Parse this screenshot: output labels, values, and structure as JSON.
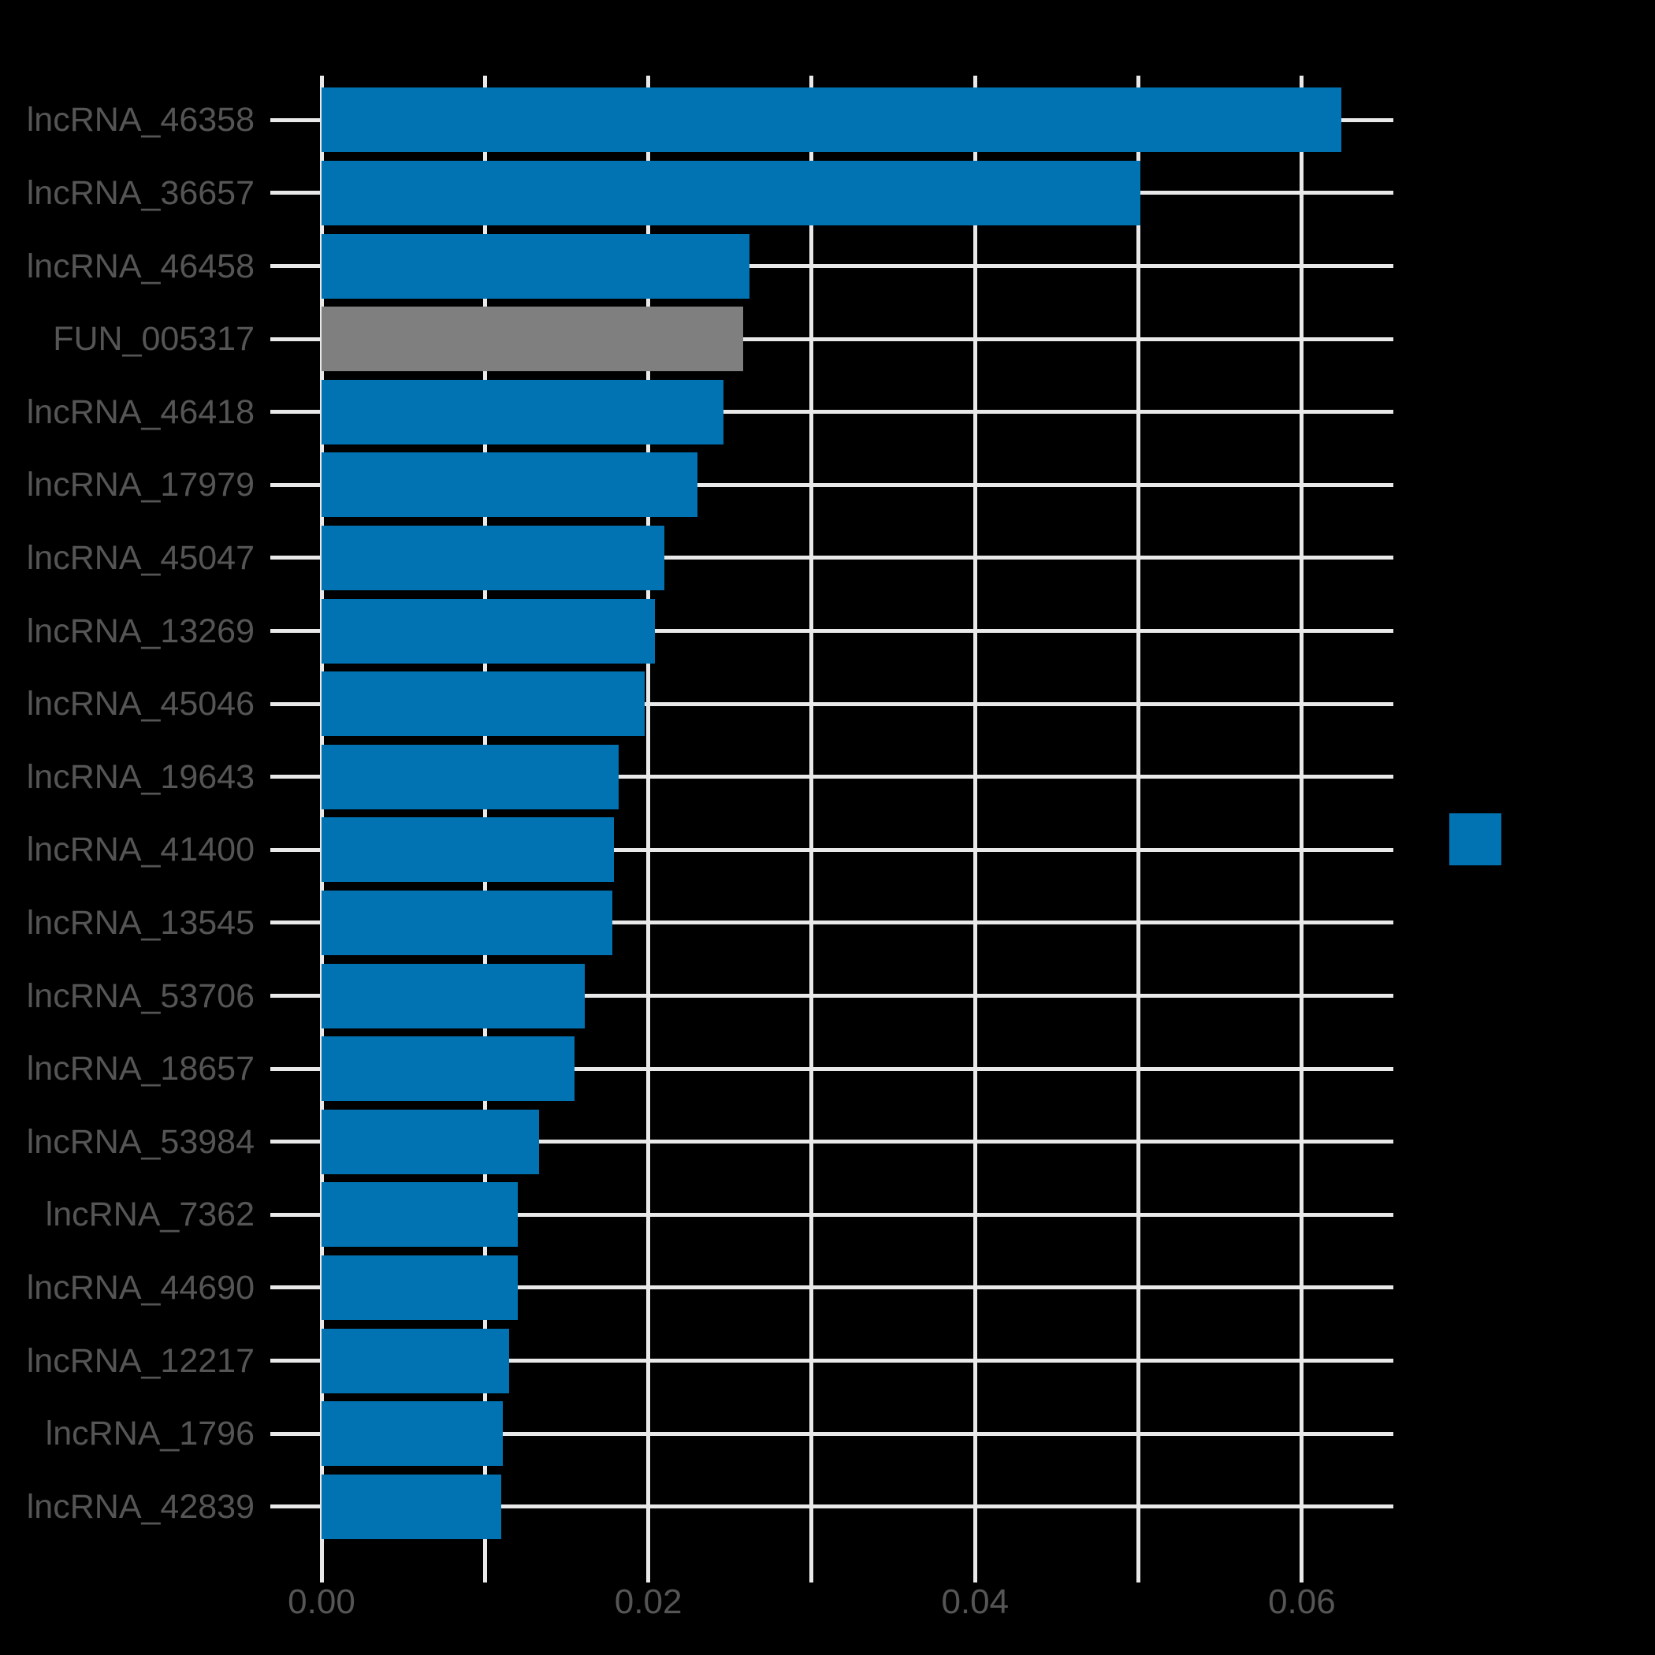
{
  "colors": {
    "background": "#000000",
    "bar_default": "#0173b2",
    "bar_highlight": "#7f7f7f",
    "grid": "#e9e9e9",
    "tick": "#e9e9e9",
    "text": "#555555"
  },
  "legend": {
    "visible": true,
    "swatch_color": "#0173b2",
    "label": ""
  },
  "chart_data": {
    "type": "bar",
    "orientation": "horizontal",
    "title": "",
    "xlabel": "",
    "ylabel": "",
    "categories": [
      "lncRNA_46358",
      "lncRNA_36657",
      "lncRNA_46458",
      "FUN_005317",
      "lncRNA_46418",
      "lncRNA_17979",
      "lncRNA_45047",
      "lncRNA_13269",
      "lncRNA_45046",
      "lncRNA_19643",
      "lncRNA_41400",
      "lncRNA_13545",
      "lncRNA_53706",
      "lncRNA_18657",
      "lncRNA_53984",
      "lncRNA_7362",
      "lncRNA_44690",
      "lncRNA_12217",
      "lncRNA_1796",
      "lncRNA_42839"
    ],
    "values": [
      0.0624,
      0.0501,
      0.0262,
      0.0258,
      0.0246,
      0.023,
      0.021,
      0.0204,
      0.0198,
      0.0182,
      0.0179,
      0.0178,
      0.0161,
      0.0155,
      0.0133,
      0.012,
      0.012,
      0.0115,
      0.0111,
      0.011
    ],
    "highlight_category": "FUN_005317",
    "highlight_index": 3,
    "xlim": [
      0,
      0.0656
    ],
    "x_major_ticks": [
      {
        "value": 0.0,
        "label": "0.00"
      },
      {
        "value": 0.02,
        "label": "0.02"
      },
      {
        "value": 0.04,
        "label": "0.04"
      },
      {
        "value": 0.06,
        "label": "0.06"
      }
    ],
    "x_minor_tick_step": 0.01,
    "grid": true,
    "legend_position": "center-right"
  }
}
